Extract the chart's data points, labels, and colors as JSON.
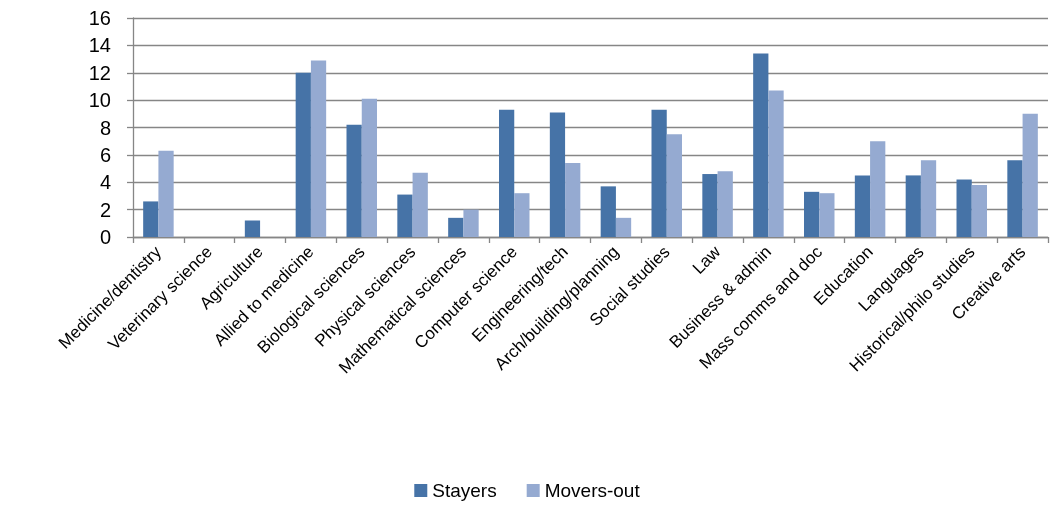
{
  "chart_data": {
    "type": "bar",
    "categories": [
      "Medicine/dentistry",
      "Veterinary science",
      "Agriculture",
      "Allied to medicine",
      "Biological sciences",
      "Physical sciences",
      "Mathematical sciences",
      "Computer science",
      "Engineering/tech",
      "Arch/building/planning",
      "Social studies",
      "Law",
      "Business & admin",
      "Mass comms and doc",
      "Education",
      "Languages",
      "Historical/philo studies",
      "Creative arts"
    ],
    "series": [
      {
        "name": "Stayers",
        "color": "#4673a7",
        "values": [
          2.6,
          0,
          1.2,
          12.0,
          8.2,
          3.1,
          1.4,
          9.3,
          9.1,
          3.7,
          9.3,
          4.6,
          13.4,
          3.3,
          4.5,
          4.5,
          4.2,
          5.6
        ]
      },
      {
        "name": "Movers-out",
        "color": "#95aad1",
        "values": [
          6.3,
          0,
          0,
          12.9,
          10.1,
          4.7,
          2.0,
          3.2,
          5.4,
          1.4,
          7.5,
          4.8,
          10.7,
          3.2,
          7.0,
          5.6,
          3.8,
          9.0
        ]
      }
    ],
    "ylim": [
      0,
      16
    ],
    "yticks": [
      0,
      2,
      4,
      6,
      8,
      10,
      12,
      14,
      16
    ],
    "grid": "y",
    "legend": "bottom"
  }
}
